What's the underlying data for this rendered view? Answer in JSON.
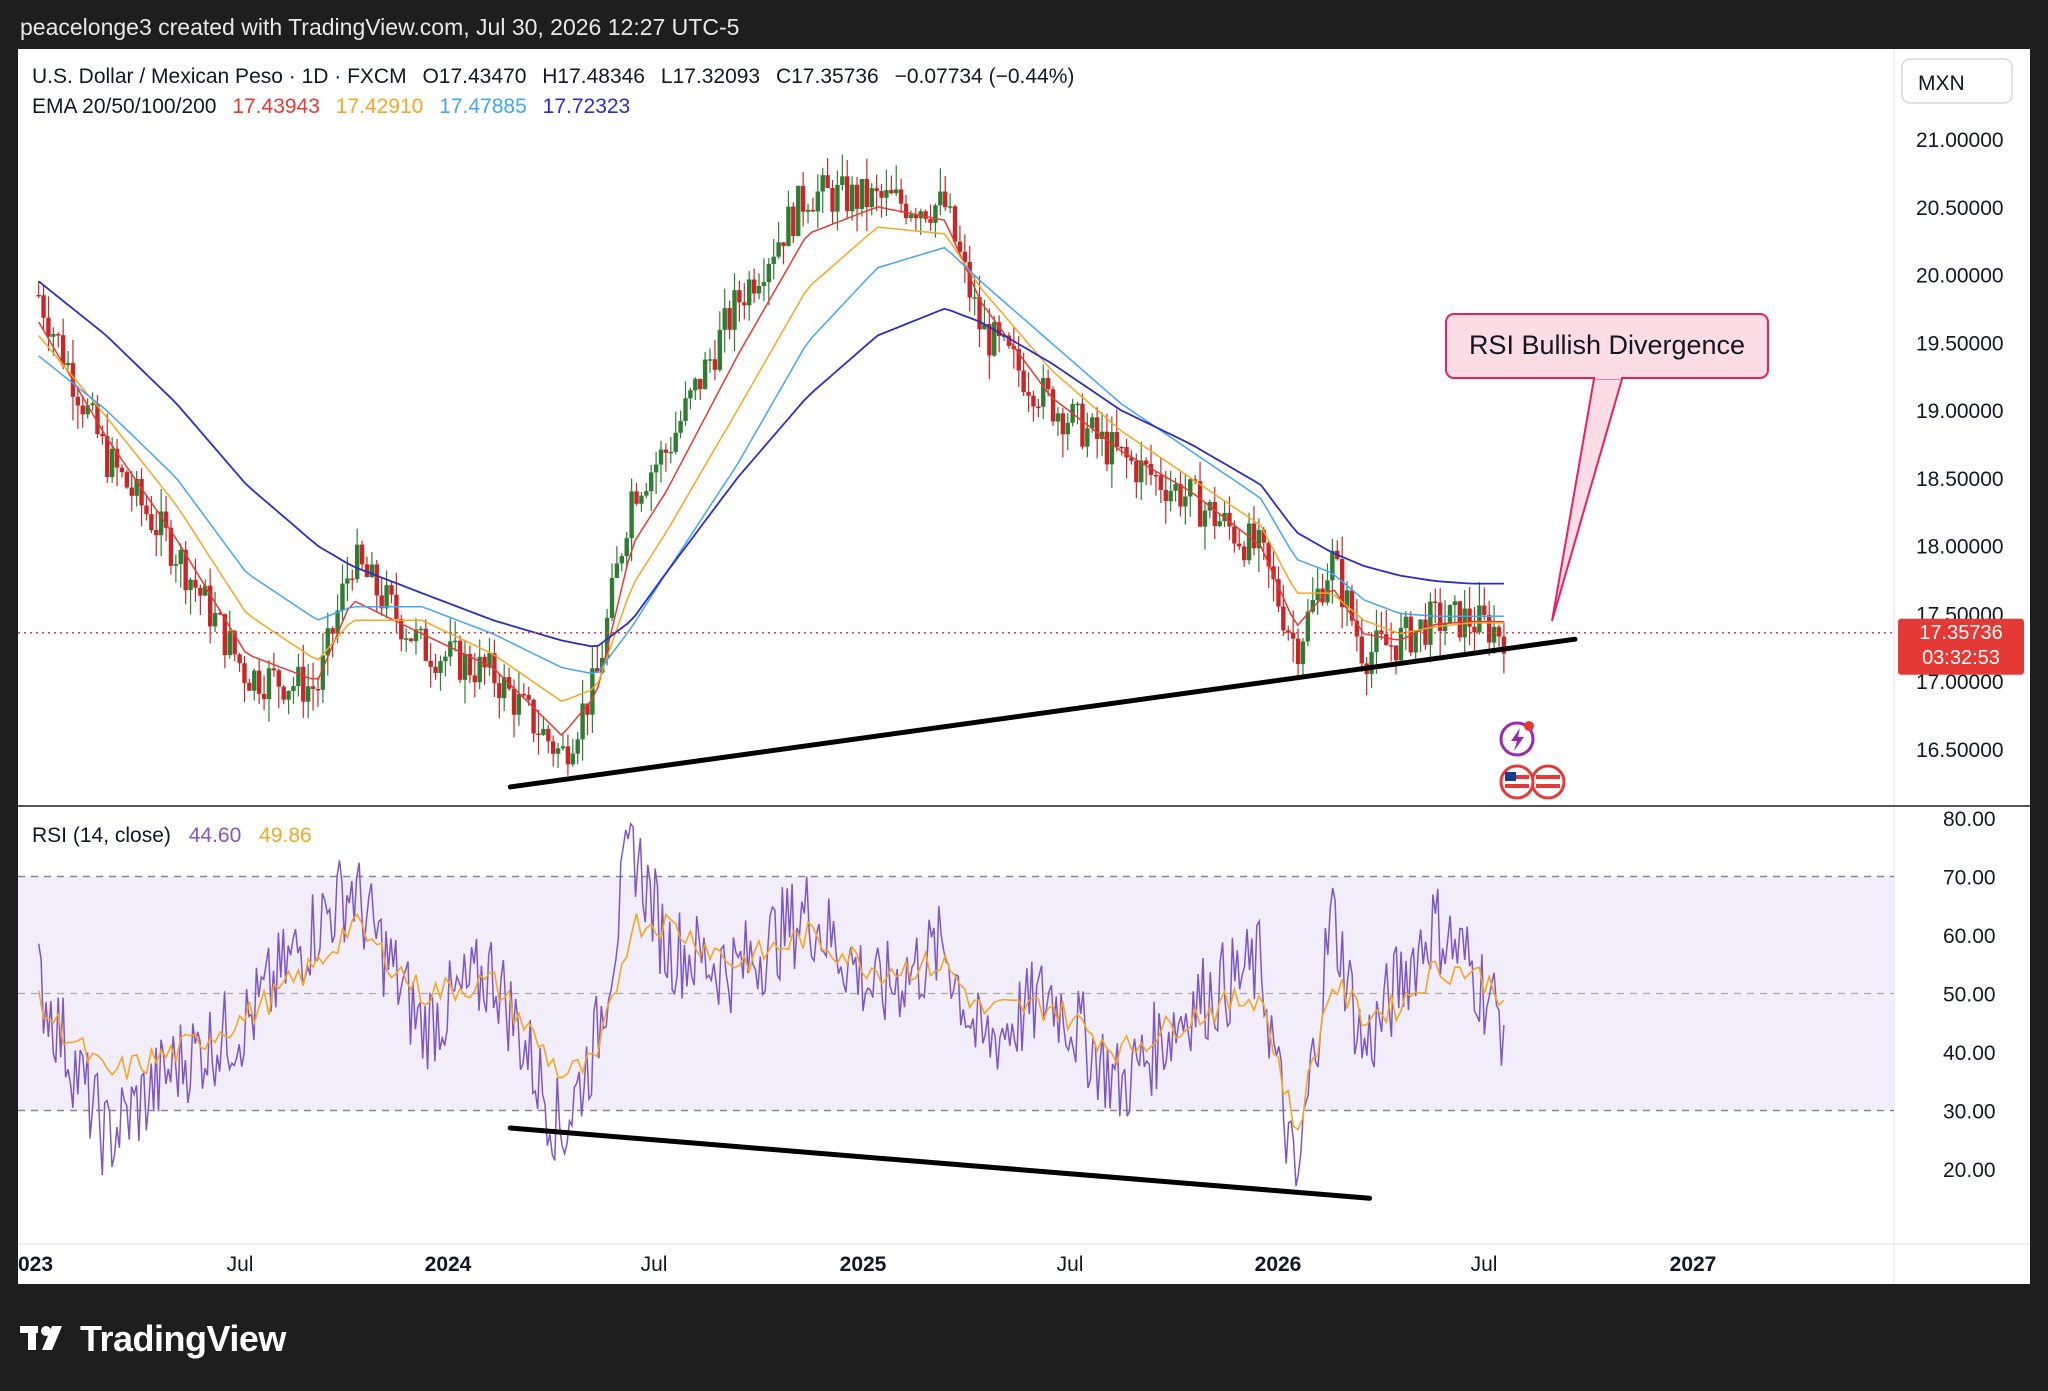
{
  "header": {
    "publisher_line": "peacelonge3 created with TradingView.com, Jul 30, 2026 12:27 UTC-5"
  },
  "symbol": {
    "name": "U.S. Dollar / Mexican Peso · 1D · FXCM",
    "open_label": "O",
    "open": "17.43470",
    "high_label": "H",
    "high": "17.48346",
    "low_label": "L",
    "low": "17.32093",
    "close_label": "C",
    "close": "17.35736",
    "change": "−0.07734 (−0.44%)",
    "currency": "MXN"
  },
  "ema": {
    "label": "EMA 20/50/100/200",
    "values": [
      "17.43943",
      "17.42910",
      "17.47885",
      "17.72323"
    ],
    "colors": [
      "#e53935",
      "#f5a623",
      "#42a5f5",
      "#2c2cc8"
    ]
  },
  "price_axis": {
    "ticks": [
      "21.00000",
      "20.50000",
      "20.00000",
      "19.50000",
      "19.00000",
      "18.50000",
      "18.00000",
      "17.50000",
      "17.00000",
      "16.50000"
    ],
    "current_price": "17.35736",
    "countdown": "03:32:53"
  },
  "annotation": {
    "text": "RSI Bullish Divergence"
  },
  "rsi": {
    "label": "RSI (14, close)",
    "value": "44.60",
    "ma_value": "49.86",
    "ticks": [
      "80.00",
      "70.00",
      "60.00",
      "50.00",
      "40.00",
      "30.00",
      "20.00"
    ],
    "line_color": "#7e57c2",
    "ma_color": "#f5a623",
    "band_color": "#f1edfb"
  },
  "time_axis": {
    "labels": [
      "023",
      "Jul",
      "2024",
      "Jul",
      "2025",
      "Jul",
      "2026",
      "Jul",
      "2027"
    ]
  },
  "branding": {
    "logo_text": "TradingView"
  },
  "chart_data": {
    "type": "candlestick",
    "title": "U.S. Dollar / Mexican Peso · 1D · FXCM",
    "ylabel": "MXN",
    "ylim": [
      16.2,
      21.3
    ],
    "up_color": "#2e7d32",
    "down_color": "#c62828",
    "x": [
      "2023-01",
      "2023-03",
      "2023-05",
      "2023-07",
      "2023-09",
      "2023-10",
      "2023-12",
      "2024-02",
      "2024-04",
      "2024-05",
      "2024-06",
      "2024-07",
      "2024-09",
      "2024-11",
      "2025-01",
      "2025-03",
      "2025-04",
      "2025-06",
      "2025-08",
      "2025-10",
      "2025-12",
      "2026-01",
      "2026-02",
      "2026-03",
      "2026-04",
      "2026-05",
      "2026-06",
      "2026-07"
    ],
    "close": [
      19.85,
      18.65,
      17.95,
      17.05,
      16.95,
      17.9,
      17.25,
      17.05,
      16.45,
      17.0,
      18.4,
      18.7,
      19.8,
      20.6,
      20.55,
      20.5,
      19.6,
      19.05,
      18.65,
      18.35,
      17.95,
      17.25,
      17.9,
      17.2,
      17.3,
      17.45,
      17.45,
      17.36
    ],
    "ema_series": [
      {
        "name": "EMA 20",
        "values": [
          19.65,
          18.8,
          18.05,
          17.2,
          17.0,
          17.6,
          17.35,
          17.1,
          16.6,
          16.9,
          18.0,
          18.4,
          19.4,
          20.3,
          20.5,
          20.4,
          19.8,
          19.1,
          18.7,
          18.4,
          18.0,
          17.4,
          17.7,
          17.35,
          17.3,
          17.42,
          17.44,
          17.44
        ]
      },
      {
        "name": "EMA 50",
        "values": [
          19.55,
          18.95,
          18.3,
          17.5,
          17.15,
          17.45,
          17.45,
          17.2,
          16.85,
          16.95,
          17.7,
          18.1,
          19.0,
          19.9,
          20.35,
          20.3,
          19.9,
          19.3,
          18.85,
          18.5,
          18.15,
          17.65,
          17.65,
          17.45,
          17.35,
          17.4,
          17.43,
          17.43
        ]
      },
      {
        "name": "EMA 100",
        "values": [
          19.4,
          19.0,
          18.5,
          17.8,
          17.45,
          17.55,
          17.55,
          17.35,
          17.1,
          17.05,
          17.4,
          17.8,
          18.6,
          19.5,
          20.05,
          20.2,
          19.95,
          19.5,
          19.05,
          18.7,
          18.35,
          17.9,
          17.8,
          17.6,
          17.5,
          17.48,
          17.48,
          17.48
        ]
      },
      {
        "name": "EMA 200",
        "values": [
          19.95,
          19.55,
          19.05,
          18.45,
          18.0,
          17.85,
          17.65,
          17.45,
          17.3,
          17.25,
          17.45,
          17.8,
          18.5,
          19.1,
          19.55,
          19.75,
          19.65,
          19.35,
          19.0,
          18.75,
          18.45,
          18.1,
          17.95,
          17.85,
          17.78,
          17.74,
          17.72,
          17.72
        ]
      }
    ],
    "rsi": {
      "name": "RSI (14, close)",
      "ylim": [
        10,
        80
      ],
      "overbought": 70,
      "oversold": 30,
      "x": [
        "2023-01",
        "2023-03",
        "2023-05",
        "2023-07",
        "2023-09",
        "2023-10",
        "2023-12",
        "2024-02",
        "2024-04",
        "2024-05",
        "2024-06",
        "2024-07",
        "2024-09",
        "2024-11",
        "2025-01",
        "2025-03",
        "2025-04",
        "2025-06",
        "2025-08",
        "2025-10",
        "2025-12",
        "2026-01",
        "2026-02",
        "2026-03",
        "2026-04",
        "2026-05",
        "2026-06",
        "2026-07"
      ],
      "values": [
        52,
        25,
        38,
        45,
        62,
        68,
        44,
        54,
        26,
        42,
        76,
        58,
        54,
        64,
        50,
        58,
        41,
        50,
        34,
        48,
        55,
        16,
        64,
        40,
        52,
        62,
        55,
        44.6
      ],
      "ma_values": [
        48,
        36,
        40,
        46,
        55,
        62,
        50,
        52,
        36,
        38,
        62,
        62,
        55,
        60,
        54,
        55,
        47,
        48,
        40,
        46,
        50,
        26,
        52,
        46,
        48,
        54,
        54,
        49.86
      ]
    },
    "trendlines": [
      {
        "pane": "price",
        "from": [
          "2024-03-01",
          16.22
        ],
        "to": [
          "2026-09-15",
          17.31
        ]
      },
      {
        "pane": "rsi",
        "from": [
          "2024-03-01",
          27
        ],
        "to": [
          "2026-03-20",
          15
        ]
      }
    ],
    "annotations": [
      "RSI Bullish Divergence"
    ],
    "x_tick_labels": [
      "023",
      "Jul",
      "2024",
      "Jul",
      "2025",
      "Jul",
      "2026",
      "Jul",
      "2027"
    ],
    "grid": false
  }
}
